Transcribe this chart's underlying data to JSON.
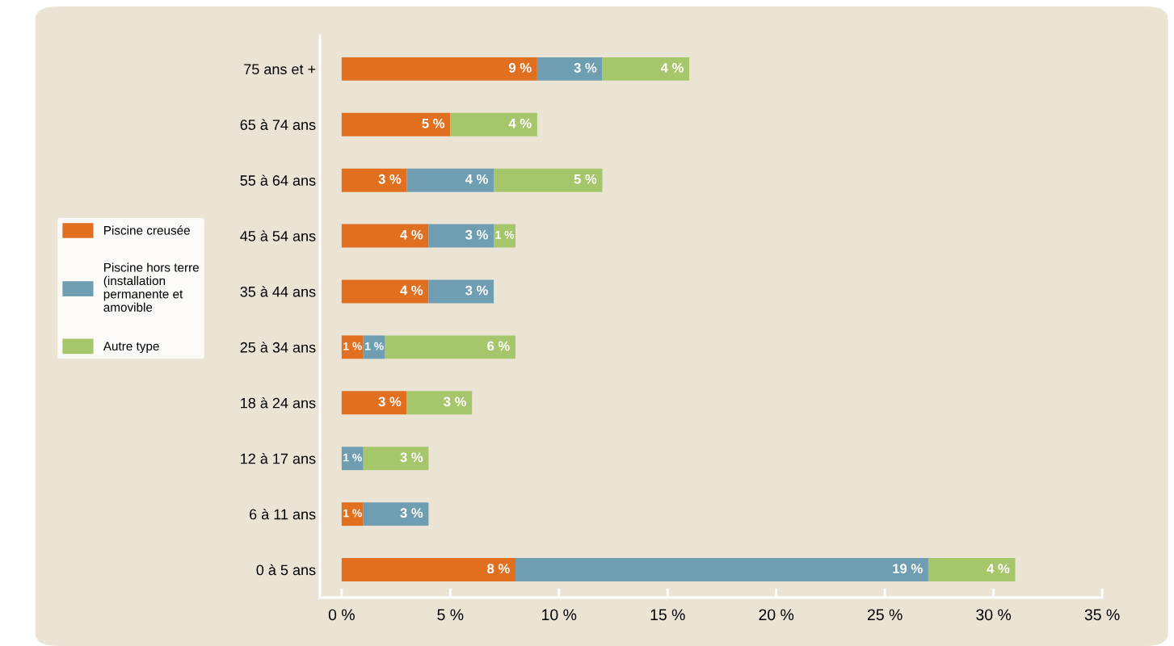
{
  "chart_data": {
    "type": "bar",
    "orientation": "horizontal",
    "stacked": true,
    "categories": [
      "75 ans et +",
      "65 à 74 ans",
      "55 à 64 ans",
      "45 à 54 ans",
      "35 à 44 ans",
      "25 à 34 ans",
      "18 à 24 ans",
      "12 à 17 ans",
      "6 à 11 ans",
      "0 à 5 ans"
    ],
    "series": [
      {
        "name": "Piscine creusée",
        "color": "#e07020",
        "values": [
          9,
          5,
          3,
          4,
          4,
          1,
          3,
          null,
          1,
          8
        ],
        "value_labels": [
          "9 %",
          "5 %",
          "3 %",
          "4 %",
          "4 %",
          "1 %",
          "3 %",
          null,
          "1 %",
          "8 %"
        ]
      },
      {
        "name": "Piscine hors terre\n(installation\npermanente et\namovible",
        "color": "#6f9db1",
        "values": [
          3,
          null,
          4,
          3,
          3,
          1,
          null,
          1,
          3,
          19
        ],
        "value_labels": [
          "3 %",
          null,
          "4 %",
          "3 %",
          "3 %",
          "1 %",
          null,
          "1 %",
          "3 %",
          "19 %"
        ]
      },
      {
        "name": "Autre type",
        "color": "#a6c66b",
        "values": [
          4,
          4,
          5,
          1,
          null,
          6,
          3,
          3,
          null,
          4
        ],
        "value_labels": [
          "4 %",
          "4 %",
          "5 %",
          "1 %",
          null,
          "6 %",
          "3 %",
          "3 %",
          null,
          "4 %"
        ]
      }
    ],
    "xlim": [
      -1,
      35
    ],
    "xticks": [
      {
        "value": 0,
        "label": "0 %"
      },
      {
        "value": 5,
        "label": "5 %"
      },
      {
        "value": 10,
        "label": "10 %"
      },
      {
        "value": 15,
        "label": "15 %"
      },
      {
        "value": 20,
        "label": "20 %"
      },
      {
        "value": 25,
        "label": "25 %"
      },
      {
        "value": 30,
        "label": "30 %"
      },
      {
        "value": 35,
        "label": "35 %"
      }
    ],
    "grid": false,
    "legend": "left"
  }
}
